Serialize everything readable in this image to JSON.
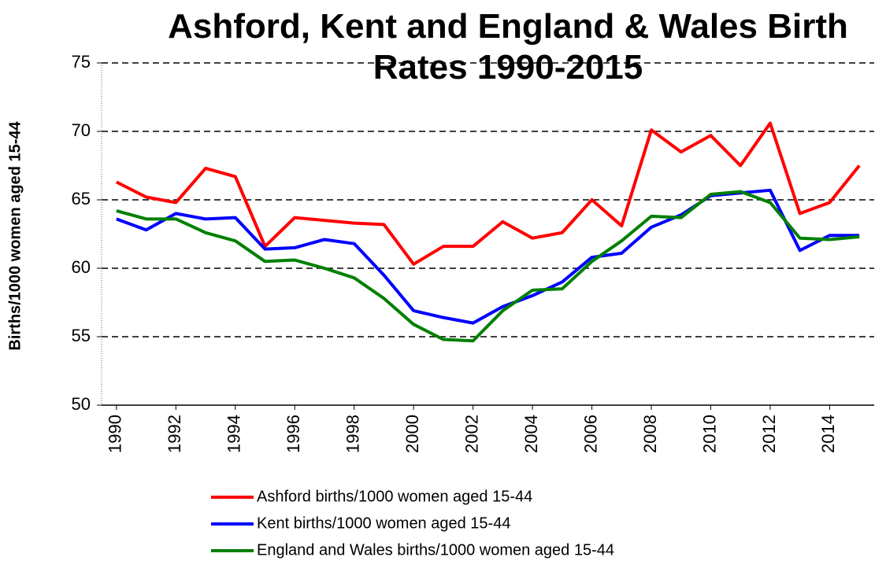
{
  "chart_data": {
    "type": "line",
    "title": [
      "Ashford, Kent and England & Wales Birth",
      "Rates 1990-2015"
    ],
    "y_label": "Births/1000 women aged 15-44",
    "x": [
      1990,
      1991,
      1992,
      1993,
      1994,
      1995,
      1996,
      1997,
      1998,
      1999,
      2000,
      2001,
      2002,
      2003,
      2004,
      2005,
      2006,
      2007,
      2008,
      2009,
      2010,
      2011,
      2012,
      2013,
      2014,
      2015
    ],
    "xlim": [
      1989.5,
      2015.5
    ],
    "xticks": [
      1990,
      1992,
      1994,
      1996,
      1998,
      2000,
      2002,
      2004,
      2006,
      2008,
      2010,
      2012,
      2014
    ],
    "ylim": [
      50,
      75
    ],
    "yticks": [
      50,
      55,
      60,
      65,
      70,
      75
    ],
    "grid": true,
    "legend": "bottom",
    "series": [
      {
        "name": "Ashford births/1000 women aged 15-44",
        "color": "#ff0000",
        "values": [
          66.3,
          65.2,
          64.8,
          67.3,
          66.7,
          61.6,
          63.7,
          63.5,
          63.3,
          63.2,
          60.3,
          61.6,
          61.6,
          63.4,
          62.2,
          62.6,
          65.0,
          63.1,
          70.1,
          68.5,
          69.7,
          67.5,
          70.6,
          64.0,
          64.8,
          67.5
        ]
      },
      {
        "name": "Kent births/1000 women aged 15-44",
        "color": "#0000ff",
        "values": [
          63.6,
          62.8,
          64.0,
          63.6,
          63.7,
          61.4,
          61.5,
          62.1,
          61.8,
          59.5,
          56.9,
          56.4,
          56.0,
          57.2,
          58.0,
          59.0,
          60.8,
          61.1,
          63.0,
          63.9,
          65.3,
          65.5,
          65.7,
          61.3,
          62.4,
          62.4
        ]
      },
      {
        "name": "England and Wales births/1000 women aged 15-44",
        "color": "#008000",
        "values": [
          64.2,
          63.6,
          63.6,
          62.6,
          62.0,
          60.5,
          60.6,
          60.0,
          59.3,
          57.8,
          55.9,
          54.8,
          54.7,
          56.9,
          58.4,
          58.5,
          60.5,
          62.0,
          63.8,
          63.7,
          65.4,
          65.6,
          64.8,
          62.2,
          62.1,
          62.3
        ]
      }
    ]
  }
}
